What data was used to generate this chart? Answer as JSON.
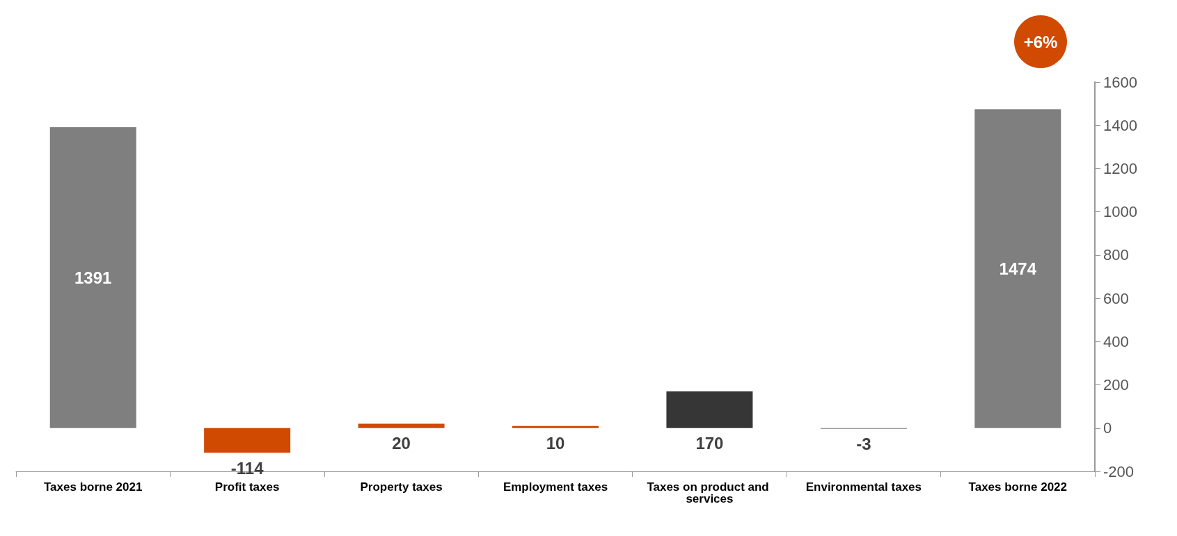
{
  "chart_data": {
    "type": "bar",
    "categories": [
      "Taxes borne 2021",
      "Profit taxes",
      "Property taxes",
      "Employment taxes",
      "Taxes on product and services",
      "Environmental taxes",
      "Taxes borne 2022"
    ],
    "values": [
      1391,
      -114,
      20,
      10,
      170,
      -3,
      1474
    ],
    "colors": [
      "#7f7f7f",
      "#d04a02",
      "#d04a02",
      "#d04a02",
      "#363636",
      "#7f7f7f",
      "#7f7f7f"
    ],
    "ylim": [
      -200,
      1600
    ],
    "yticks": [
      -200,
      0,
      200,
      400,
      600,
      800,
      1000,
      1200,
      1400,
      1600
    ],
    "data_labels": true,
    "annotations": [
      "+6%"
    ]
  }
}
